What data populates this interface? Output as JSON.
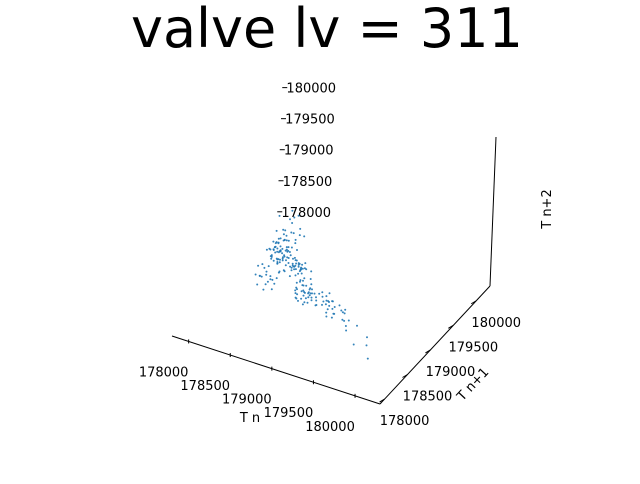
{
  "chart_data": {
    "type": "scatter",
    "projection": "3d",
    "title": "valve lv = 311",
    "xlabel": "T n",
    "ylabel": "T n+1",
    "zlabel": "T n+2",
    "xticks": [
      "178000",
      "178500",
      "179000",
      "179500",
      "180000"
    ],
    "yticks": [
      "178000",
      "178500",
      "179000",
      "179500",
      "180000"
    ],
    "zticks": [
      "178000",
      "178500",
      "179000",
      "179500",
      "180000"
    ],
    "xlim": [
      177800,
      180300
    ],
    "ylim": [
      177900,
      180300
    ],
    "zlim": [
      177900,
      180300
    ],
    "grid": false,
    "legend": "none",
    "series": [
      {
        "color": "#1f77b4",
        "marker_size": 1,
        "points": [
          [
            178750,
            178800,
            178720
          ],
          [
            178820,
            178700,
            178690
          ],
          [
            178700,
            178900,
            178760
          ],
          [
            178900,
            178750,
            178640
          ],
          [
            178650,
            178820,
            178810
          ],
          [
            178780,
            178650,
            178700
          ],
          [
            178850,
            178880,
            178660
          ],
          [
            178720,
            178760,
            178740
          ],
          [
            178600,
            178700,
            178790
          ],
          [
            178950,
            178800,
            178610
          ],
          [
            178800,
            178950,
            178680
          ],
          [
            178680,
            178600,
            178770
          ],
          [
            178870,
            178720,
            178620
          ],
          [
            178740,
            178840,
            178700
          ],
          [
            178620,
            178780,
            178830
          ],
          [
            178930,
            178680,
            178590
          ],
          [
            178760,
            178720,
            178730
          ],
          [
            178700,
            178660,
            178750
          ],
          [
            178840,
            178800,
            178650
          ],
          [
            178660,
            178880,
            178800
          ],
          [
            178780,
            178780,
            178710
          ],
          [
            178900,
            178900,
            178630
          ],
          [
            178720,
            178640,
            178760
          ],
          [
            178820,
            178860,
            178670
          ],
          [
            178640,
            178740,
            178820
          ],
          [
            178980,
            178760,
            178570
          ],
          [
            178760,
            178900,
            178690
          ],
          [
            178690,
            178720,
            178780
          ],
          [
            178860,
            178660,
            178620
          ],
          [
            178730,
            178800,
            178730
          ],
          [
            178550,
            178650,
            178880
          ],
          [
            178600,
            178900,
            178850
          ],
          [
            178700,
            178550,
            178800
          ],
          [
            178580,
            178800,
            178900
          ],
          [
            178650,
            178600,
            178950
          ],
          [
            178550,
            178850,
            178920
          ],
          [
            178620,
            178700,
            178990
          ],
          [
            178520,
            178750,
            178940
          ],
          [
            178680,
            178780,
            178960
          ],
          [
            178580,
            178650,
            178860
          ],
          [
            178500,
            178900,
            178980
          ],
          [
            178630,
            178820,
            178910
          ],
          [
            178560,
            178720,
            179020
          ],
          [
            178700,
            178700,
            178880
          ],
          [
            178600,
            178760,
            178930
          ],
          [
            178540,
            178800,
            178870
          ],
          [
            178660,
            178640,
            178920
          ],
          [
            178580,
            178880,
            179010
          ],
          [
            178620,
            178660,
            178850
          ],
          [
            178510,
            178700,
            178970
          ],
          [
            178650,
            178920,
            178890
          ],
          [
            178570,
            178760,
            179050
          ],
          [
            178690,
            178580,
            178940
          ],
          [
            178530,
            178820,
            178900
          ],
          [
            178610,
            178740,
            178970
          ],
          [
            178550,
            178600,
            179080
          ],
          [
            178640,
            178860,
            178940
          ],
          [
            178590,
            178700,
            178860
          ],
          [
            178500,
            178780,
            179030
          ],
          [
            178670,
            178720,
            178910
          ],
          [
            178560,
            178640,
            178950
          ],
          [
            178620,
            178900,
            179000
          ],
          [
            178540,
            178680,
            178880
          ],
          [
            178600,
            178820,
            179060
          ],
          [
            178700,
            178760,
            178870
          ],
          [
            178580,
            178580,
            178990
          ],
          [
            178520,
            178860,
            178960
          ],
          [
            178660,
            178800,
            178920
          ],
          [
            178570,
            178720,
            179100
          ],
          [
            178640,
            178620,
            178860
          ],
          [
            178540,
            178760,
            179040
          ],
          [
            178610,
            178880,
            178910
          ],
          [
            178680,
            178690,
            178960
          ],
          [
            178560,
            178800,
            178870
          ],
          [
            178500,
            178640,
            179010
          ],
          [
            178630,
            178740,
            178930
          ],
          [
            178590,
            178900,
            179070
          ],
          [
            178550,
            178700,
            178980
          ],
          [
            178670,
            178840,
            178890
          ],
          [
            178610,
            178620,
            179030
          ],
          [
            178520,
            178780,
            178950
          ],
          [
            178650,
            178720,
            178870
          ],
          [
            178580,
            178860,
            179120
          ],
          [
            178630,
            178660,
            178900
          ],
          [
            178540,
            178740,
            178990
          ],
          [
            178600,
            178800,
            178940
          ],
          [
            179100,
            178650,
            178500
          ],
          [
            179200,
            178700,
            178450
          ],
          [
            179050,
            178600,
            178550
          ],
          [
            179250,
            178750,
            178420
          ],
          [
            179150,
            178550,
            178470
          ],
          [
            179300,
            178650,
            178400
          ],
          [
            179000,
            178700,
            178560
          ],
          [
            179180,
            178800,
            178480
          ],
          [
            179350,
            178600,
            178380
          ],
          [
            179080,
            178500,
            178520
          ],
          [
            179220,
            178650,
            178440
          ],
          [
            179400,
            178700,
            178350
          ],
          [
            179120,
            178750,
            178510
          ],
          [
            179280,
            178550,
            178410
          ],
          [
            179050,
            178650,
            178540
          ],
          [
            179200,
            178600,
            178460
          ],
          [
            179330,
            178750,
            178390
          ],
          [
            179150,
            178700,
            178490
          ],
          [
            179450,
            178600,
            178330
          ],
          [
            179100,
            178550,
            178530
          ],
          [
            179260,
            178650,
            178430
          ],
          [
            179380,
            178700,
            178370
          ],
          [
            179030,
            178600,
            178570
          ],
          [
            179170,
            178750,
            178470
          ],
          [
            179310,
            178500,
            178400
          ],
          [
            179220,
            178700,
            178450
          ],
          [
            179500,
            178650,
            178300
          ],
          [
            179080,
            178650,
            178550
          ],
          [
            179350,
            178550,
            178360
          ],
          [
            179130,
            178600,
            178500
          ],
          [
            179420,
            178700,
            178340
          ],
          [
            179240,
            178750,
            178420
          ],
          [
            179060,
            178550,
            178560
          ],
          [
            179190,
            178650,
            178470
          ],
          [
            179470,
            178600,
            178320
          ],
          [
            179300,
            178700,
            178390
          ],
          [
            179550,
            178500,
            178280
          ],
          [
            179110,
            178700,
            178520
          ],
          [
            179270,
            178600,
            178420
          ],
          [
            179600,
            178650,
            178260
          ],
          [
            179160,
            178550,
            178480
          ],
          [
            179400,
            178750,
            178350
          ],
          [
            179020,
            178650,
            178590
          ],
          [
            179230,
            178700,
            178440
          ],
          [
            179520,
            178550,
            178300
          ],
          [
            179340,
            178600,
            178380
          ],
          [
            179700,
            178400,
            178200
          ],
          [
            179800,
            178500,
            178150
          ],
          [
            179900,
            178350,
            178100
          ],
          [
            179750,
            178600,
            178180
          ],
          [
            178850,
            178650,
            178500
          ],
          [
            178900,
            178700,
            178470
          ],
          [
            178950,
            178600,
            178450
          ],
          [
            178880,
            178750,
            178520
          ],
          [
            178920,
            178550,
            178480
          ],
          [
            178980,
            178650,
            178430
          ],
          [
            178860,
            178800,
            178540
          ],
          [
            178940,
            178700,
            178460
          ],
          [
            179000,
            178550,
            178420
          ],
          [
            178900,
            178600,
            178500
          ],
          [
            178960,
            178750,
            178440
          ],
          [
            178870,
            178650,
            178530
          ],
          [
            178930,
            178700,
            178470
          ],
          [
            178990,
            178600,
            178410
          ],
          [
            178910,
            178550,
            178490
          ],
          [
            178970,
            178800,
            178450
          ],
          [
            178850,
            178750,
            178560
          ],
          [
            178950,
            178650,
            178460
          ],
          [
            178880,
            178600,
            178510
          ],
          [
            179020,
            178700,
            178420
          ],
          [
            178900,
            178800,
            178480
          ],
          [
            178940,
            178550,
            178450
          ],
          [
            178860,
            178650,
            178550
          ],
          [
            178980,
            178750,
            178430
          ],
          [
            178920,
            178700,
            178490
          ],
          [
            178750,
            178800,
            179100
          ],
          [
            178700,
            178850,
            179200
          ],
          [
            178650,
            178750,
            179300
          ],
          [
            178800,
            178900,
            179150
          ],
          [
            178600,
            178800,
            179250
          ],
          [
            178750,
            178700,
            179350
          ],
          [
            178700,
            178900,
            179050
          ],
          [
            178650,
            178850,
            179400
          ],
          [
            178800,
            178800,
            179250
          ],
          [
            178600,
            178750,
            179150
          ],
          [
            178750,
            178850,
            179500
          ],
          [
            178700,
            178700,
            179200
          ],
          [
            178650,
            178900,
            179300
          ],
          [
            178550,
            178800,
            179450
          ],
          [
            178800,
            178750,
            179050
          ],
          [
            178700,
            178800,
            179600
          ],
          [
            178600,
            178650,
            179350
          ],
          [
            178750,
            178900,
            179250
          ],
          [
            178650,
            178750,
            179150
          ],
          [
            178700,
            178850,
            179450
          ],
          [
            178550,
            178550,
            178700
          ],
          [
            178600,
            178500,
            178650
          ],
          [
            178500,
            178600,
            178750
          ],
          [
            178650,
            178550,
            178600
          ],
          [
            178550,
            178650,
            178550
          ],
          [
            178500,
            178500,
            178700
          ],
          [
            178600,
            178600,
            178600
          ],
          [
            178450,
            178550,
            178800
          ],
          [
            178650,
            178500,
            178550
          ],
          [
            178500,
            178650,
            178650
          ],
          [
            178550,
            178450,
            178750
          ],
          [
            178600,
            178550,
            178700
          ],
          [
            178450,
            178600,
            178600
          ],
          [
            178550,
            178500,
            178500
          ],
          [
            178500,
            178550,
            178850
          ],
          [
            178600,
            178450,
            178650
          ],
          [
            178450,
            178500,
            178700
          ],
          [
            178550,
            178600,
            178800
          ],
          [
            178650,
            178600,
            178650
          ],
          [
            178500,
            178450,
            178600
          ],
          [
            178800,
            178800,
            178800
          ],
          [
            178850,
            178750,
            178750
          ],
          [
            178750,
            178850,
            178780
          ],
          [
            178820,
            178820,
            178720
          ],
          [
            178780,
            178780,
            178800
          ],
          [
            178850,
            178850,
            178700
          ],
          [
            178760,
            178760,
            178760
          ],
          [
            178800,
            178700,
            178780
          ],
          [
            178840,
            178780,
            178740
          ],
          [
            178720,
            178820,
            178820
          ],
          [
            178780,
            178840,
            178700
          ],
          [
            178860,
            178720,
            178760
          ],
          [
            178740,
            178780,
            178780
          ],
          [
            178810,
            178860,
            178730
          ],
          [
            178770,
            178700,
            178790
          ],
          [
            178830,
            178800,
            178710
          ],
          [
            178710,
            178740,
            178810
          ],
          [
            178790,
            178820,
            178750
          ],
          [
            178850,
            178700,
            178730
          ],
          [
            178730,
            178860,
            178770
          ]
        ]
      }
    ]
  }
}
